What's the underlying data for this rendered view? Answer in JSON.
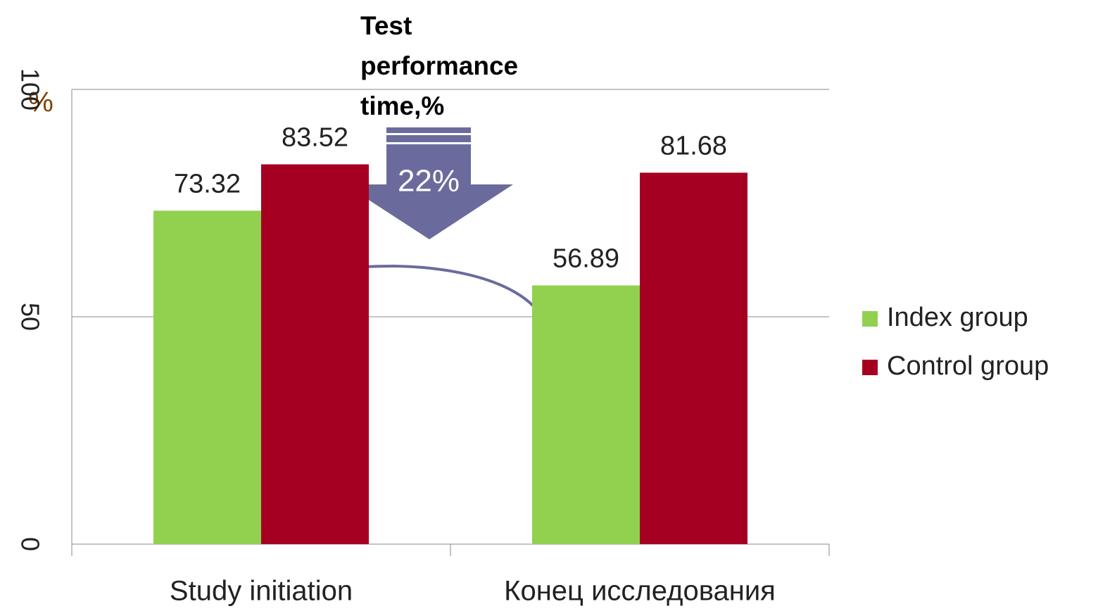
{
  "chart_data": {
    "type": "bar",
    "title": "Test performance time,%",
    "y_label": "%",
    "categories": [
      "Study initiation",
      "Конец исследования"
    ],
    "series": [
      {
        "name": "Index group",
        "color": "#92d050",
        "values": [
          73.32,
          56.89
        ]
      },
      {
        "name": "Control group",
        "color": "#a50021",
        "values": [
          83.52,
          81.68
        ]
      }
    ],
    "ylim": [
      0,
      100
    ],
    "yticks": [
      0,
      50,
      100
    ],
    "grid": true,
    "legend": "right",
    "annotation": "22%"
  }
}
